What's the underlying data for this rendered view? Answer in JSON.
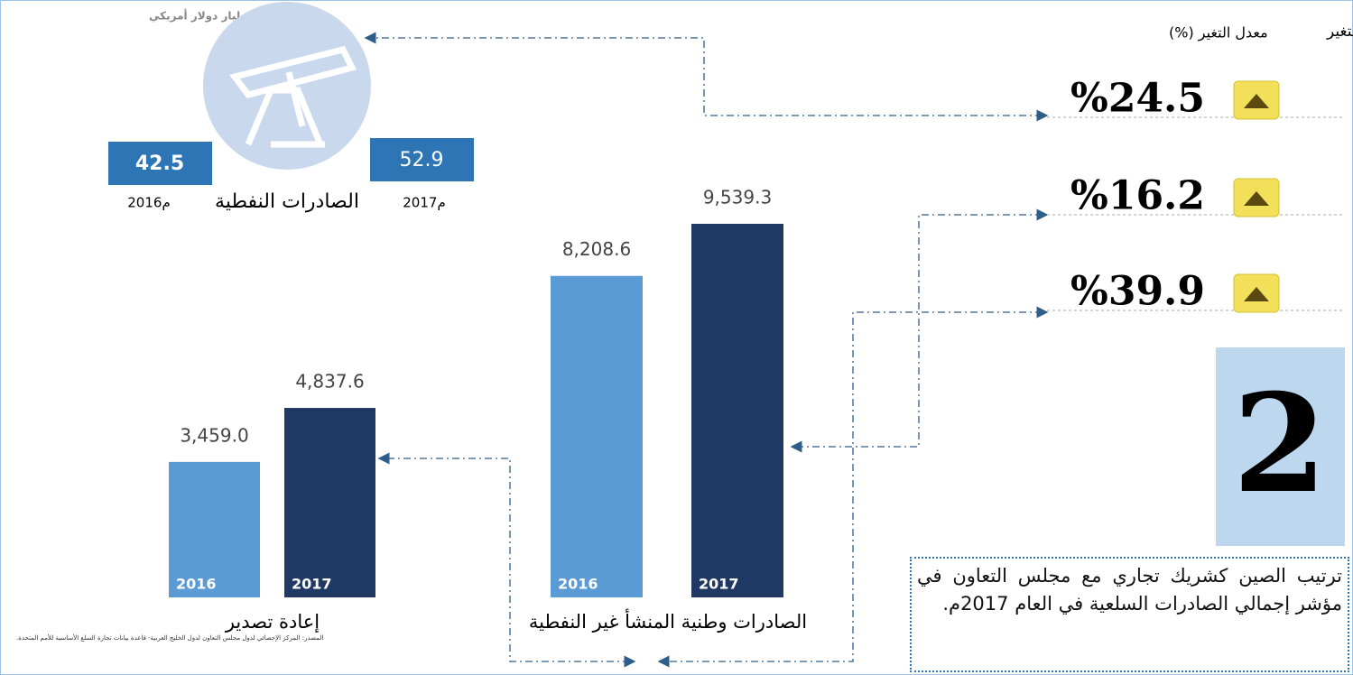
{
  "unit": "مليار دولار أمريكي",
  "change_header": {
    "direction": "اتجاه التغير",
    "rate": "معدل التغير (%)"
  },
  "changes": [
    {
      "value": 24.5,
      "label": "%24.5"
    },
    {
      "value": 16.2,
      "label": "%16.2"
    },
    {
      "value": 39.9,
      "label": "%39.9"
    }
  ],
  "oil_exports": {
    "title": "الصادرات النفطية",
    "years": [
      "2016م",
      "2017م"
    ],
    "values": [
      42.5,
      52.9
    ]
  },
  "non_oil_exports": {
    "title": "الصادرات وطنية المنشأ غير النفطية",
    "years": [
      "2016",
      "2017"
    ],
    "values": [
      8208.6,
      9539.3
    ],
    "value_labels": [
      "8,208.6",
      "9,539.3"
    ],
    "colors": [
      "#5b9bd5",
      "#203864"
    ]
  },
  "re_exports": {
    "title": "إعادة تصدير",
    "years": [
      "2016",
      "2017"
    ],
    "values": [
      3459.0,
      4837.6
    ],
    "value_labels": [
      "3,459.0",
      "4,837.6"
    ],
    "colors": [
      "#5b9bd5",
      "#203864"
    ]
  },
  "rank": "2",
  "description": "ترتيب الصين كشريك تجاري مع مجلس التعاون في مؤشر إجمالي الصادرات السلعية في العام 2017م.",
  "source": "المصدر: المركز الإحصائي لدول مجلس التعاون لدول الخليج العربية- قاعدة بيانات تجارة السلع الأساسية للأمم المتحدة."
}
